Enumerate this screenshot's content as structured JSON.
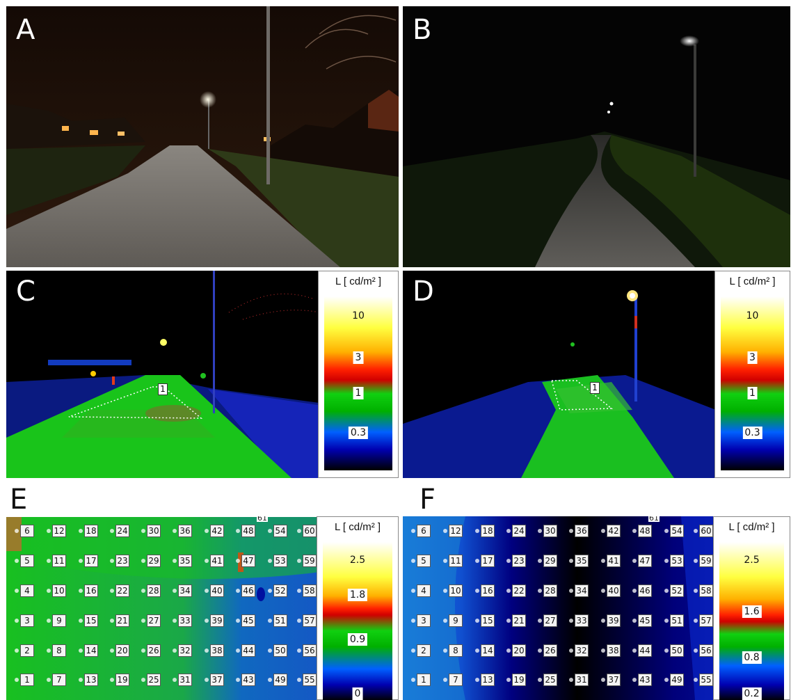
{
  "panels": {
    "A": {
      "letter": "A"
    },
    "B": {
      "letter": "B"
    },
    "C": {
      "letter": "C",
      "marker": "1"
    },
    "D": {
      "letter": "D",
      "marker": "1"
    },
    "E": {
      "letter": "E",
      "top_label": "61"
    },
    "F": {
      "letter": "F",
      "top_label": "61"
    }
  },
  "legends": {
    "cd": {
      "title": "L [ cd/m² ]",
      "ticks": [
        "10",
        "3",
        "1",
        "0.3"
      ]
    },
    "e": {
      "title": "L [ cd/m² ]",
      "ticks": [
        "2.5",
        "1.8",
        "0.9",
        "0"
      ]
    },
    "f": {
      "title": "L [ cd/m² ]",
      "ticks": [
        "2.5",
        "1.6",
        "0.8",
        "0.2"
      ]
    }
  },
  "grid_labels": {
    "E": [
      [
        "6",
        "12",
        "18",
        "24",
        "30",
        "36",
        "42",
        "48",
        "54",
        "60"
      ],
      [
        "5",
        "11",
        "17",
        "23",
        "29",
        "35",
        "41",
        "47",
        "53",
        "59"
      ],
      [
        "4",
        "10",
        "16",
        "22",
        "28",
        "34",
        "40",
        "46",
        "52",
        "58"
      ],
      [
        "3",
        "9",
        "15",
        "21",
        "27",
        "33",
        "39",
        "45",
        "51",
        "57"
      ],
      [
        "2",
        "8",
        "14",
        "20",
        "26",
        "32",
        "38",
        "44",
        "50",
        "56"
      ],
      [
        "1",
        "7",
        "13",
        "19",
        "25",
        "31",
        "37",
        "43",
        "49",
        "55"
      ]
    ],
    "F": [
      [
        "6",
        "12",
        "18",
        "24",
        "30",
        "36",
        "42",
        "48",
        "54",
        "60"
      ],
      [
        "5",
        "11",
        "17",
        "23",
        "29",
        "35",
        "41",
        "47",
        "53",
        "59"
      ],
      [
        "4",
        "10",
        "16",
        "22",
        "28",
        "34",
        "40",
        "46",
        "52",
        "58"
      ],
      [
        "3",
        "9",
        "15",
        "21",
        "27",
        "33",
        "39",
        "45",
        "51",
        "57"
      ],
      [
        "2",
        "8",
        "14",
        "20",
        "26",
        "32",
        "38",
        "44",
        "50",
        "56"
      ],
      [
        "1",
        "7",
        "13",
        "19",
        "25",
        "31",
        "37",
        "43",
        "49",
        "55"
      ]
    ]
  },
  "colors": {
    "falsecolor_low": "#000000",
    "falsecolor_blue": "#0000ff",
    "falsecolor_green": "#00c000",
    "falsecolor_red": "#ff0000",
    "falsecolor_yellow": "#ffff00",
    "falsecolor_high": "#ffffff"
  }
}
